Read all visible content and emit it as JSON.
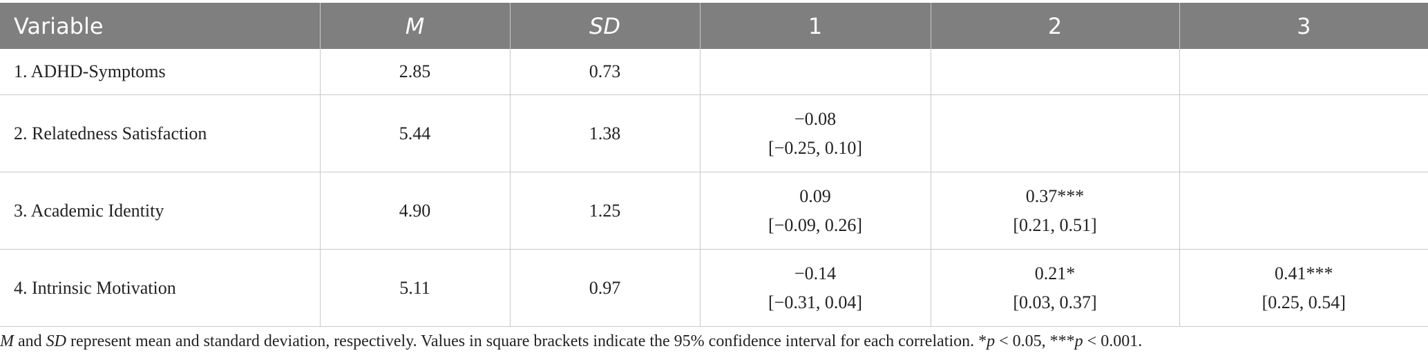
{
  "table": {
    "headers": [
      "Variable",
      "M",
      "SD",
      "1",
      "2",
      "3"
    ],
    "rows": [
      {
        "variable": "1. ADHD-Symptoms",
        "m": "2.85",
        "sd": "0.73",
        "c1": {
          "r": "",
          "ci": ""
        },
        "c2": {
          "r": "",
          "ci": ""
        },
        "c3": {
          "r": "",
          "ci": ""
        }
      },
      {
        "variable": "2. Relatedness Satisfaction",
        "m": "5.44",
        "sd": "1.38",
        "c1": {
          "r": "−0.08",
          "ci": "[−0.25, 0.10]"
        },
        "c2": {
          "r": "",
          "ci": ""
        },
        "c3": {
          "r": "",
          "ci": ""
        }
      },
      {
        "variable": "3. Academic Identity",
        "m": "4.90",
        "sd": "1.25",
        "c1": {
          "r": "0.09",
          "ci": "[−0.09, 0.26]"
        },
        "c2": {
          "r": "0.37***",
          "ci": "[0.21, 0.51]"
        },
        "c3": {
          "r": "",
          "ci": ""
        }
      },
      {
        "variable": "4. Intrinsic Motivation",
        "m": "5.11",
        "sd": "0.97",
        "c1": {
          "r": "−0.14",
          "ci": "[−0.31, 0.04]"
        },
        "c2": {
          "r": "0.21*",
          "ci": "[0.03, 0.37]"
        },
        "c3": {
          "r": "0.41***",
          "ci": "[0.25, 0.54]"
        }
      }
    ]
  },
  "footnote": {
    "m": "M",
    "and": " and ",
    "sd": "SD",
    "text1": " represent mean and standard deviation, respectively. Values in square brackets indicate the 95% confidence interval for each correlation. *",
    "p1": "p",
    "text2": " < 0.05, ***",
    "p2": "p",
    "text3": " < 0.001."
  }
}
